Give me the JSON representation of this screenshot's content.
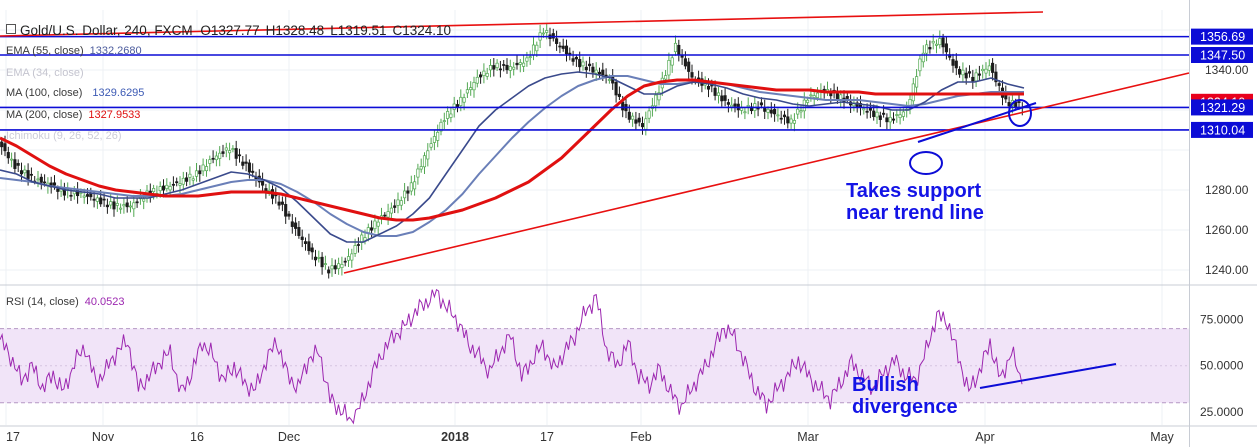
{
  "title": {
    "symbol": "Gold/U.S. Dollar, 240, FXCM",
    "open": "O1327.77",
    "high": "H1328.48",
    "low": "L1319.51",
    "close": "C1324.10"
  },
  "legend": {
    "ema55": {
      "label": "EMA (55, close)",
      "value": "1332.2680",
      "color": "#4a5a9c"
    },
    "ema34": {
      "label": "EMA (34, close)",
      "value": "",
      "color": "#b8b8c8"
    },
    "ma100": {
      "label": "MA (100, close)",
      "value": "1329.6295",
      "color": "#3c5ab4"
    },
    "ma200": {
      "label": "MA (200, close)",
      "value": "1327.9533",
      "color": "#e01010"
    },
    "ichimoku": {
      "label": "Ichimoku (9, 26, 52, 26)",
      "value": "",
      "color": "#c8c8d8"
    },
    "rsi": {
      "label": "RSI (14, close)",
      "value": "40.0523",
      "color": "#9c27b0"
    }
  },
  "annotations": {
    "support": [
      "Takes support",
      "near trend line"
    ],
    "divergence": [
      "Bullish",
      "divergence"
    ]
  },
  "colors": {
    "accent_blue": "#0c0cd6",
    "trend_red": "#e81010",
    "price_tag_red": "#e8001c",
    "rsi_purple": "#9c27b0",
    "rsi_band": "#f1e4f8",
    "candle": "#3c8c3c"
  },
  "chart_data": [
    {
      "type": "candlestick",
      "title": "Gold/U.S. Dollar, 240, FXCM",
      "x_ticks": [
        "17",
        "Nov",
        "16",
        "Dec",
        "2018",
        "17",
        "Feb",
        "Mar",
        "Apr",
        "May"
      ],
      "y_ticks": [
        "1240.00",
        "1260.00",
        "1280.00",
        "1340.00"
      ],
      "ylim": [
        1233,
        1370
      ],
      "price_levels": [
        {
          "label": "1356.69",
          "value": 1356.69
        },
        {
          "label": "1347.50",
          "value": 1347.5
        },
        {
          "label": "1324.10",
          "value": 1324.1
        },
        {
          "label": "1321.29",
          "value": 1321.29
        },
        {
          "label": "1310.04",
          "value": 1310.04
        }
      ],
      "last_price": 1324.1,
      "close_path": [
        1304,
        1292,
        1286,
        1283,
        1279,
        1278,
        1275,
        1272,
        1272,
        1278,
        1281,
        1284,
        1288,
        1296,
        1301,
        1292,
        1282,
        1274,
        1260,
        1248,
        1240,
        1244,
        1256,
        1265,
        1272,
        1282,
        1300,
        1316,
        1325,
        1336,
        1342,
        1341,
        1345,
        1360,
        1352,
        1344,
        1340,
        1336,
        1318,
        1312,
        1330,
        1352,
        1336,
        1332,
        1324,
        1320,
        1322,
        1318,
        1314,
        1326,
        1330,
        1326,
        1322,
        1318,
        1315,
        1320,
        1350,
        1355,
        1340,
        1336,
        1342,
        1324,
        1322
      ],
      "ema55_path": [
        1290,
        1288,
        1284,
        1282,
        1280,
        1279,
        1278,
        1276,
        1276,
        1276,
        1278,
        1280,
        1283,
        1286,
        1289,
        1288,
        1285,
        1281,
        1274,
        1266,
        1258,
        1254,
        1254,
        1258,
        1262,
        1268,
        1276,
        1288,
        1300,
        1312,
        1320,
        1326,
        1332,
        1336,
        1338,
        1339,
        1338,
        1336,
        1332,
        1328,
        1328,
        1332,
        1334,
        1333,
        1331,
        1328,
        1326,
        1325,
        1323,
        1322,
        1323,
        1324,
        1323,
        1322,
        1320,
        1320,
        1324,
        1330,
        1334,
        1334,
        1336,
        1333,
        1331
      ],
      "ma100_path": [
        1286,
        1285,
        1284,
        1282,
        1281,
        1280,
        1279,
        1278,
        1277,
        1277,
        1277,
        1278,
        1280,
        1282,
        1284,
        1285,
        1285,
        1283,
        1279,
        1274,
        1268,
        1263,
        1259,
        1257,
        1257,
        1259,
        1264,
        1270,
        1278,
        1288,
        1297,
        1306,
        1314,
        1321,
        1327,
        1332,
        1335,
        1337,
        1337,
        1335,
        1333,
        1333,
        1334,
        1334,
        1333,
        1331,
        1329,
        1328,
        1327,
        1326,
        1325,
        1325,
        1325,
        1324,
        1323,
        1322,
        1323,
        1325,
        1327,
        1328,
        1329,
        1329,
        1329
      ],
      "ma200_path": [
        1306,
        1302,
        1297,
        1292,
        1288,
        1285,
        1282,
        1280,
        1279,
        1278,
        1277,
        1277,
        1277,
        1278,
        1279,
        1279,
        1279,
        1278,
        1276,
        1274,
        1272,
        1270,
        1268,
        1266,
        1265,
        1265,
        1266,
        1268,
        1270,
        1273,
        1276,
        1280,
        1284,
        1290,
        1296,
        1304,
        1312,
        1320,
        1327,
        1332,
        1334,
        1335,
        1335,
        1334,
        1333,
        1332,
        1331,
        1330,
        1330,
        1330,
        1329,
        1329,
        1329,
        1328,
        1328,
        1328,
        1328,
        1328,
        1328,
        1328,
        1328,
        1328,
        1328
      ]
    },
    {
      "type": "line",
      "title": "RSI (14, close)",
      "y_ticks": [
        "25.0000",
        "50.0000",
        "75.0000"
      ],
      "ylim": [
        18,
        93
      ],
      "band": [
        30,
        70
      ],
      "last_value": 40.0523,
      "rsi_path": [
        64,
        55,
        42,
        50,
        38,
        45,
        36,
        52,
        60,
        41,
        48,
        58,
        63,
        38,
        44,
        52,
        57,
        35,
        46,
        63,
        55,
        42,
        50,
        40,
        37,
        53,
        63,
        45,
        38,
        54,
        57,
        32,
        26,
        20,
        30,
        46,
        58,
        66,
        71,
        79,
        84,
        90,
        81,
        74,
        62,
        55,
        47,
        58,
        66,
        44,
        53,
        61,
        48,
        57,
        66,
        79,
        87,
        58,
        50,
        62,
        44,
        40,
        48,
        35,
        28,
        38,
        47,
        58,
        71,
        65,
        51,
        37,
        29,
        37,
        45,
        53,
        44,
        37,
        32,
        41,
        52,
        44,
        38,
        46,
        53,
        45,
        42,
        58,
        77,
        74,
        55,
        36,
        47,
        62,
        42,
        58,
        40
      ]
    }
  ]
}
